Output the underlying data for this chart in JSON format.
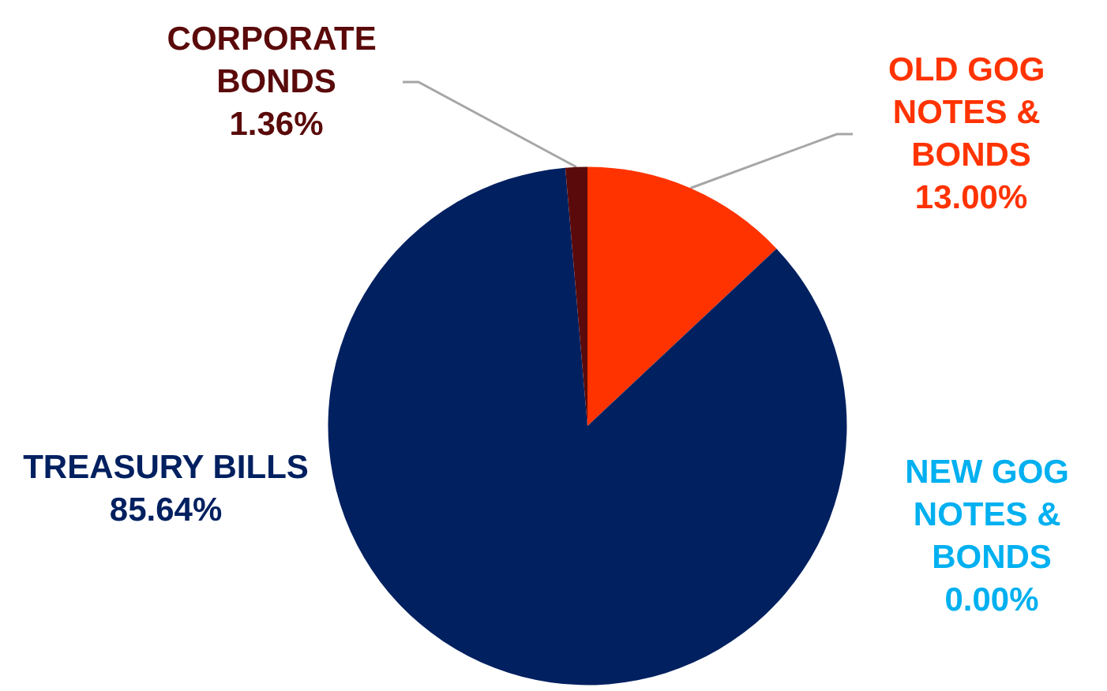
{
  "chart_data": {
    "type": "pie",
    "categories": [
      "OLD GOG NOTES & BONDS",
      "NEW GOG NOTES & BONDS",
      "TREASURY BILLS",
      "CORPORATE BONDS"
    ],
    "values": [
      13.0,
      0.0,
      85.64,
      1.36
    ],
    "value_labels": [
      "13.00%",
      "0.00%",
      "85.64%",
      "1.36%"
    ],
    "colors": [
      "#ff3300",
      "#00b0f0",
      "#002060",
      "#5a0a0a"
    ],
    "legend": false
  }
}
